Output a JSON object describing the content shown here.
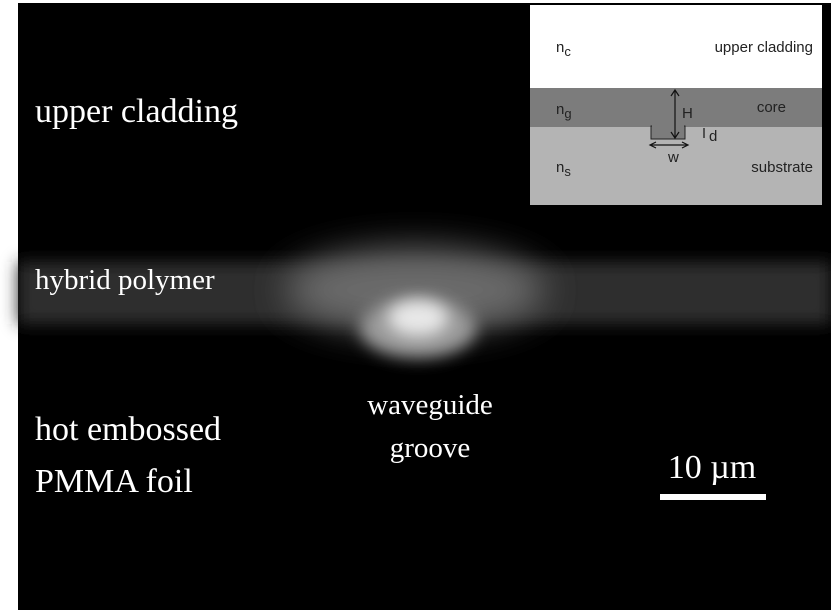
{
  "labels": {
    "upper_cladding": "upper cladding",
    "hybrid_polymer": "hybrid polymer",
    "hot_embossed": "hot embossed",
    "pmma_foil": "PMMA foil",
    "waveguide": "waveguide",
    "groove": "groove"
  },
  "inset": {
    "n_c": {
      "base": "n",
      "sub": "c"
    },
    "upper_cladding": "upper cladding",
    "n_g": {
      "base": "n",
      "sub": "g"
    },
    "core": "core",
    "n_s": {
      "base": "n",
      "sub": "s"
    },
    "substrate": "substrate",
    "H": "H",
    "d": "d",
    "w": "w"
  },
  "scale_bar": {
    "label": "10 µm"
  }
}
